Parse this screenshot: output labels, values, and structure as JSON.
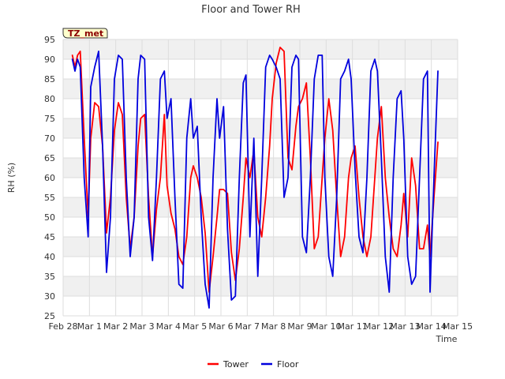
{
  "chart_data": {
    "type": "line",
    "title": "Floor and Tower RH",
    "xlabel": "Time",
    "ylabel": "RH (%)",
    "badge": "TZ_met",
    "ylim": [
      25,
      95
    ],
    "yticks": [
      25,
      30,
      35,
      40,
      45,
      50,
      55,
      60,
      65,
      70,
      75,
      80,
      85,
      90,
      95
    ],
    "xlim": [
      0,
      15
    ],
    "x_ticks": [
      "Feb 28",
      "Mar 1",
      "Mar 2",
      "Mar 3",
      "Mar 4",
      "Mar 5",
      "Mar 6",
      "Mar 7",
      "Mar 8",
      "Mar 9",
      "Mar 10",
      "Mar 11",
      "Mar 12",
      "Mar 13",
      "Mar 14",
      "Mar 15"
    ],
    "grid": true,
    "legend_position": "bottom-center",
    "series": [
      {
        "name": "Tower",
        "color": "#ff0000",
        "x": [
          0.35,
          0.45,
          0.55,
          0.65,
          0.8,
          0.95,
          1.05,
          1.2,
          1.35,
          1.5,
          1.65,
          1.8,
          1.95,
          2.1,
          2.25,
          2.4,
          2.55,
          2.7,
          2.85,
          2.95,
          3.1,
          3.25,
          3.4,
          3.55,
          3.7,
          3.85,
          3.95,
          4.1,
          4.25,
          4.4,
          4.55,
          4.7,
          4.85,
          4.95,
          5.1,
          5.25,
          5.4,
          5.55,
          5.7,
          5.85,
          5.95,
          6.1,
          6.25,
          6.4,
          6.55,
          6.7,
          6.85,
          6.95,
          7.1,
          7.25,
          7.4,
          7.55,
          7.7,
          7.85,
          7.95,
          8.1,
          8.25,
          8.4,
          8.55,
          8.7,
          8.85,
          8.95,
          9.1,
          9.25,
          9.4,
          9.55,
          9.7,
          9.85,
          9.95,
          10.1,
          10.25,
          10.4,
          10.55,
          10.7,
          10.85,
          10.95,
          11.1,
          11.25,
          11.4,
          11.55,
          11.7,
          11.85,
          11.95,
          12.1,
          12.25,
          12.4,
          12.55,
          12.7,
          12.85,
          12.95,
          13.1,
          13.25,
          13.4,
          13.55,
          13.7,
          13.85,
          13.95,
          14.1,
          14.25
        ],
        "y": [
          91,
          88,
          91,
          92,
          70,
          50,
          70,
          79,
          78,
          68,
          46,
          55,
          72,
          79,
          76,
          55,
          42,
          50,
          68,
          75,
          76,
          55,
          40,
          52,
          60,
          76,
          58,
          51,
          47,
          40,
          38,
          45,
          60,
          63,
          60,
          55,
          46,
          31,
          40,
          50,
          57,
          57,
          56,
          41,
          34,
          42,
          55,
          65,
          60,
          67,
          50,
          45,
          55,
          68,
          80,
          89,
          93,
          92,
          65,
          62,
          73,
          78,
          80,
          84,
          65,
          42,
          45,
          60,
          70,
          80,
          72,
          55,
          40,
          45,
          60,
          65,
          68,
          55,
          45,
          40,
          45,
          60,
          70,
          78,
          60,
          50,
          42,
          40,
          48,
          56,
          45,
          65,
          58,
          42,
          42,
          48,
          40,
          55,
          69
        ]
      },
      {
        "name": "Floor",
        "color": "#0000dd",
        "x": [
          0.35,
          0.45,
          0.55,
          0.65,
          0.8,
          0.95,
          1.05,
          1.2,
          1.35,
          1.5,
          1.65,
          1.8,
          1.95,
          2.1,
          2.25,
          2.4,
          2.55,
          2.7,
          2.85,
          2.95,
          3.1,
          3.25,
          3.4,
          3.55,
          3.7,
          3.85,
          3.95,
          4.1,
          4.25,
          4.4,
          4.55,
          4.7,
          4.85,
          4.95,
          5.1,
          5.25,
          5.4,
          5.55,
          5.7,
          5.85,
          5.95,
          6.1,
          6.25,
          6.4,
          6.55,
          6.7,
          6.85,
          6.95,
          7.1,
          7.25,
          7.4,
          7.55,
          7.7,
          7.85,
          7.95,
          8.1,
          8.25,
          8.4,
          8.55,
          8.7,
          8.85,
          8.95,
          9.1,
          9.25,
          9.4,
          9.55,
          9.7,
          9.85,
          9.95,
          10.1,
          10.25,
          10.4,
          10.55,
          10.7,
          10.85,
          10.95,
          11.1,
          11.25,
          11.4,
          11.55,
          11.7,
          11.85,
          11.95,
          12.1,
          12.25,
          12.4,
          12.55,
          12.7,
          12.85,
          12.95,
          13.1,
          13.25,
          13.4,
          13.55,
          13.7,
          13.85,
          13.95,
          14.1,
          14.25
        ],
        "y": [
          90,
          87,
          90,
          88,
          60,
          45,
          83,
          88,
          92,
          68,
          36,
          50,
          85,
          91,
          90,
          60,
          40,
          50,
          85,
          91,
          90,
          50,
          39,
          60,
          85,
          87,
          75,
          80,
          55,
          33,
          32,
          70,
          80,
          70,
          73,
          50,
          33,
          27,
          60,
          80,
          70,
          78,
          47,
          29,
          30,
          60,
          84,
          86,
          45,
          70,
          35,
          60,
          88,
          91,
          90,
          88,
          85,
          55,
          60,
          88,
          91,
          90,
          45,
          41,
          60,
          85,
          91,
          91,
          60,
          40,
          35,
          55,
          85,
          87,
          90,
          85,
          62,
          45,
          41,
          60,
          87,
          90,
          87,
          65,
          40,
          31,
          60,
          80,
          82,
          70,
          40,
          33,
          35,
          60,
          85,
          87,
          31,
          60,
          87
        ]
      }
    ]
  }
}
